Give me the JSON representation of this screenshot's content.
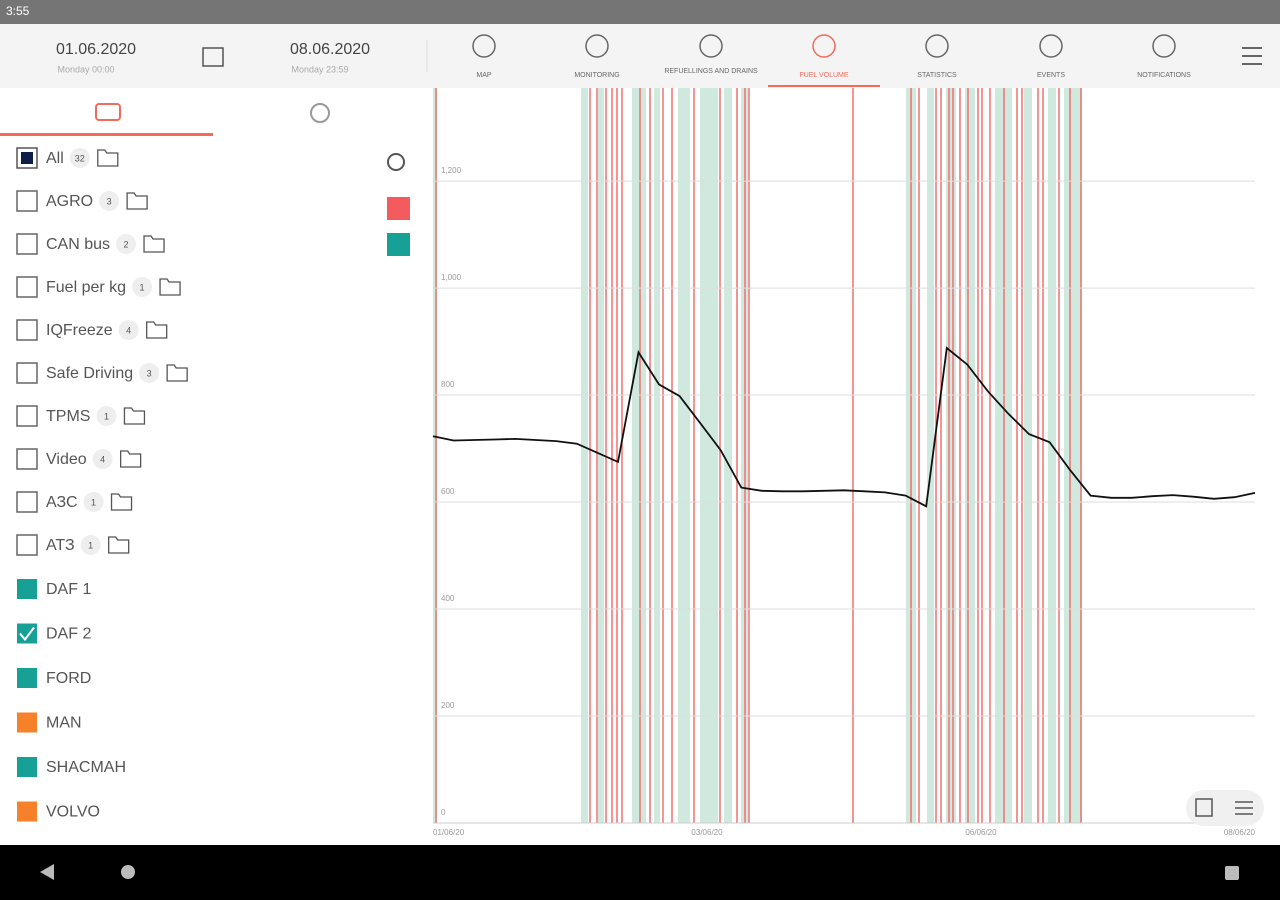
{
  "status_bar": {
    "time": "3:55"
  },
  "header": {
    "date_from": "01.06.2020",
    "date_from_sub": "Monday 00:00",
    "date_to": "08.06.2020",
    "date_to_sub": "Monday 23:59"
  },
  "tabs": [
    "MAP",
    "MONITORING",
    "REFUELLINGS AND DRAINS",
    "FUEL VOLUME",
    "STATISTICS",
    "EVENTS",
    "NOTIFICATIONS"
  ],
  "groups": [
    {
      "name": "All",
      "count": "32"
    },
    {
      "name": "AGRO",
      "count": "3"
    },
    {
      "name": "CAN bus",
      "count": "2"
    },
    {
      "name": "Fuel per kg",
      "count": "1"
    },
    {
      "name": "IQFreeze",
      "count": "4"
    },
    {
      "name": "Safe Driving",
      "count": "3"
    },
    {
      "name": "TPMS",
      "count": "1"
    },
    {
      "name": "Video",
      "count": "4"
    },
    {
      "name": "АЗС",
      "count": "1"
    },
    {
      "name": "АТЗ",
      "count": "1"
    }
  ],
  "vehicles": [
    {
      "name": "DAF 1",
      "color": "#17a096",
      "checked": false
    },
    {
      "name": "DAF 2",
      "color": "#17a096",
      "checked": true
    },
    {
      "name": "FORD",
      "color": "#17a096",
      "checked": false
    },
    {
      "name": "MAN",
      "color": "#f5822a",
      "checked": false
    },
    {
      "name": "SHACMAH",
      "color": "#17a096",
      "checked": false
    },
    {
      "name": "VOLVO",
      "color": "#f5822a",
      "checked": false
    }
  ],
  "chart_data": {
    "type": "line",
    "color": "#111111",
    "values": [
      723,
      715,
      716,
      717,
      718,
      716,
      714,
      709,
      692,
      675,
      880,
      820,
      798,
      748,
      697,
      627,
      621,
      620,
      620,
      621,
      622,
      620,
      618,
      612,
      592,
      888,
      857,
      807,
      765,
      727,
      712,
      660,
      612,
      608,
      608,
      611,
      613,
      610,
      606,
      609,
      617
    ],
    "x_labels": [
      "01/06/20",
      "03/06/20",
      "06/06/20",
      "08/06/20"
    ],
    "ylim": [
      0,
      1374
    ],
    "yticks": [
      0,
      200,
      400,
      600,
      800,
      {
        "value": 1000,
        "label": "1,000"
      },
      {
        "value": 1200,
        "label": "1,200"
      }
    ],
    "grid": true
  }
}
